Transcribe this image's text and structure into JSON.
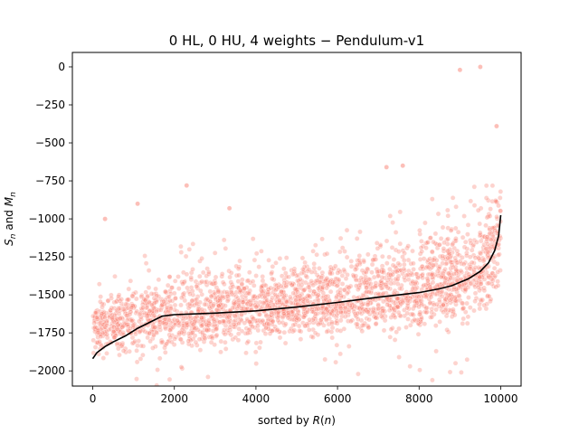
{
  "chart_data": {
    "type": "scatter",
    "title": "0 HL, 0 HU, 4 weights − Pendulum-v1",
    "xlabel": "sorted by R(n)",
    "ylabel": "S_n and M_n",
    "xlim": [
      -500,
      10500
    ],
    "ylim": [
      -2100,
      95
    ],
    "xticks": [
      0,
      2000,
      4000,
      6000,
      8000,
      10000
    ],
    "xtick_labels": [
      "0",
      "2000",
      "4000",
      "6000",
      "8000",
      "10000"
    ],
    "yticks": [
      0,
      -250,
      -500,
      -750,
      -1000,
      -1250,
      -1500,
      -1750,
      -2000
    ],
    "ytick_labels": [
      "0",
      "−250",
      "−500",
      "−750",
      "−1000",
      "−1250",
      "−1500",
      "−1750",
      "−2000"
    ],
    "grid": false,
    "colors": {
      "scatter": "#fa8072",
      "line": "#000000"
    },
    "series": [
      {
        "kind": "scatter",
        "n_points": 10000,
        "center_band": [
          [
            0,
            -1700
          ],
          [
            1700,
            -1640
          ],
          [
            5000,
            -1560
          ],
          [
            8000,
            -1480
          ],
          [
            9500,
            -1330
          ],
          [
            10000,
            -1100
          ]
        ],
        "upper_extent": [
          [
            0,
            -1500
          ],
          [
            1500,
            -1250
          ],
          [
            5000,
            -1150
          ],
          [
            8000,
            -900
          ],
          [
            9500,
            -750
          ],
          [
            10000,
            -550
          ]
        ],
        "lower_extent": [
          [
            0,
            -1980
          ],
          [
            1500,
            -1980
          ],
          [
            5000,
            -1870
          ],
          [
            8000,
            -1820
          ],
          [
            9500,
            -1800
          ],
          [
            10000,
            -1800
          ]
        ],
        "outliers": [
          [
            9000,
            -20
          ],
          [
            9500,
            0
          ],
          [
            9900,
            -390
          ],
          [
            3350,
            -930
          ],
          [
            2300,
            -780
          ],
          [
            7200,
            -660
          ],
          [
            7600,
            -650
          ],
          [
            1100,
            -900
          ],
          [
            300,
            -1000
          ]
        ]
      },
      {
        "kind": "line",
        "x": [
          0,
          100,
          300,
          500,
          800,
          1100,
          1400,
          1700,
          2000,
          3000,
          4000,
          5000,
          6000,
          7000,
          8000,
          8500,
          8800,
          9200,
          9500,
          9700,
          9850,
          9950,
          10000
        ],
        "y": [
          -1920,
          -1880,
          -1840,
          -1810,
          -1770,
          -1720,
          -1680,
          -1640,
          -1630,
          -1620,
          -1605,
          -1580,
          -1550,
          -1515,
          -1485,
          -1460,
          -1440,
          -1395,
          -1345,
          -1290,
          -1210,
          -1110,
          -975
        ]
      }
    ]
  }
}
